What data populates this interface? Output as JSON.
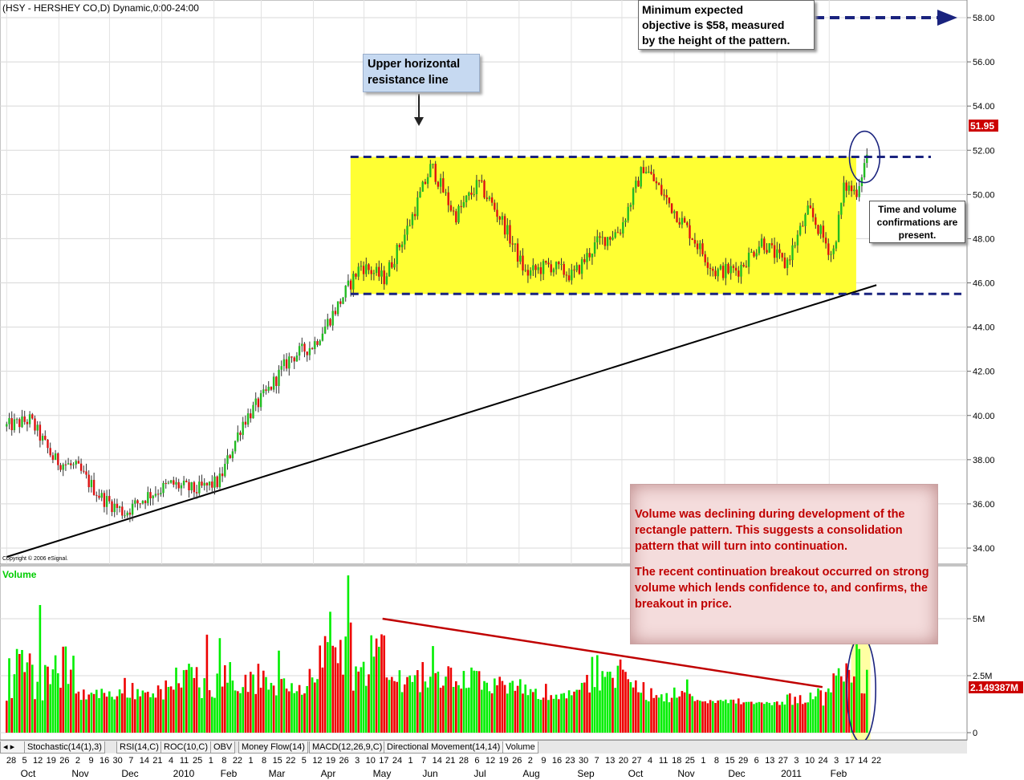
{
  "chart_data": {
    "type": "candlestick",
    "title": "(HSY - HERSHEY CO,D) Dynamic,0:00-24:00",
    "copyright": "Copyright © 2006 eSignal.",
    "price_axis": {
      "ticks": [
        "58.00",
        "56.00",
        "54.00",
        "52.00",
        "50.00",
        "48.00",
        "46.00",
        "44.00",
        "42.00",
        "40.00",
        "38.00",
        "36.00",
        "34.00"
      ],
      "last_price": "51.95"
    },
    "volume_axis": {
      "label": "Volume",
      "ticks": [
        "5M",
        "2.5M",
        "0"
      ],
      "last_volume": "2.149387M"
    },
    "price_series": [
      {
        "date": "2009-10-01",
        "close": 39.5
      },
      {
        "date": "2009-10-15",
        "close": 39.8
      },
      {
        "date": "2009-10-29",
        "close": 38.0
      },
      {
        "date": "2009-11-12",
        "close": 37.6
      },
      {
        "date": "2009-11-26",
        "close": 36.3
      },
      {
        "date": "2009-12-10",
        "close": 35.6
      },
      {
        "date": "2009-12-24",
        "close": 36.4
      },
      {
        "date": "2010-01-07",
        "close": 36.9
      },
      {
        "date": "2010-01-21",
        "close": 36.6
      },
      {
        "date": "2010-02-04",
        "close": 37.0
      },
      {
        "date": "2010-02-18",
        "close": 39.7
      },
      {
        "date": "2010-03-04",
        "close": 41.0
      },
      {
        "date": "2010-03-18",
        "close": 42.6
      },
      {
        "date": "2010-04-01",
        "close": 43.2
      },
      {
        "date": "2010-04-15",
        "close": 44.9
      },
      {
        "date": "2010-04-29",
        "close": 46.8
      },
      {
        "date": "2010-05-13",
        "close": 46.2
      },
      {
        "date": "2010-05-27",
        "close": 48.5
      },
      {
        "date": "2010-06-10",
        "close": 51.3
      },
      {
        "date": "2010-06-24",
        "close": 49.0
      },
      {
        "date": "2010-07-08",
        "close": 50.5
      },
      {
        "date": "2010-07-22",
        "close": 48.8
      },
      {
        "date": "2010-08-05",
        "close": 46.4
      },
      {
        "date": "2010-08-19",
        "close": 46.8
      },
      {
        "date": "2010-09-02",
        "close": 46.3
      },
      {
        "date": "2010-09-16",
        "close": 47.8
      },
      {
        "date": "2010-09-30",
        "close": 48.4
      },
      {
        "date": "2010-10-14",
        "close": 51.3
      },
      {
        "date": "2010-10-28",
        "close": 49.7
      },
      {
        "date": "2010-11-11",
        "close": 48.2
      },
      {
        "date": "2010-11-25",
        "close": 46.5
      },
      {
        "date": "2010-12-09",
        "close": 46.6
      },
      {
        "date": "2010-12-23",
        "close": 47.9
      },
      {
        "date": "2011-01-06",
        "close": 46.8
      },
      {
        "date": "2011-01-20",
        "close": 49.3
      },
      {
        "date": "2011-02-03",
        "close": 47.2
      },
      {
        "date": "2011-02-10",
        "close": 50.4
      },
      {
        "date": "2011-02-17",
        "close": 50.1
      },
      {
        "date": "2011-02-24",
        "close": 51.95
      }
    ],
    "volume_series": [
      {
        "date": "2009-10-01",
        "volume": 1.4
      },
      {
        "date": "2009-10-20",
        "volume": 5.6
      },
      {
        "date": "2009-11-12",
        "volume": 1.8
      },
      {
        "date": "2009-12-10",
        "volume": 2.4
      },
      {
        "date": "2010-01-07",
        "volume": 1.9
      },
      {
        "date": "2010-01-27",
        "volume": 4.3
      },
      {
        "date": "2010-02-18",
        "volume": 2.0
      },
      {
        "date": "2010-03-11",
        "volume": 3.6
      },
      {
        "date": "2010-04-01",
        "volume": 2.2
      },
      {
        "date": "2010-04-21",
        "volume": 6.9
      },
      {
        "date": "2010-05-13",
        "volume": 2.6
      },
      {
        "date": "2010-06-10",
        "volume": 3.8
      },
      {
        "date": "2010-07-08",
        "volume": 2.7
      },
      {
        "date": "2010-08-05",
        "volume": 2.3
      },
      {
        "date": "2010-09-02",
        "volume": 1.8
      },
      {
        "date": "2010-09-16",
        "volume": 3.4
      },
      {
        "date": "2010-10-14",
        "volume": 2.5
      },
      {
        "date": "2010-11-11",
        "volume": 1.6
      },
      {
        "date": "2010-12-09",
        "volume": 1.5
      },
      {
        "date": "2011-01-06",
        "volume": 1.3
      },
      {
        "date": "2011-02-03",
        "volume": 2.6
      },
      {
        "date": "2011-02-17",
        "volume": 3.9
      },
      {
        "date": "2011-02-24",
        "volume": 2.15
      }
    ],
    "rectangle": {
      "top": 51.7,
      "bottom": 45.5,
      "start": "2010-04-23",
      "end": "2011-02-17"
    },
    "support_trendline": {
      "from": {
        "date": "2009-10-01",
        "price": 33.6
      },
      "to": {
        "date": "2011-03-01",
        "price": 45.9
      }
    },
    "target_price": 58.0,
    "volume_trendline": {
      "from": {
        "date": "2010-05-12",
        "volume": 5.0
      },
      "to": {
        "date": "2011-01-28",
        "volume": 2.0
      }
    },
    "date_axis": {
      "day_labels": [
        "28",
        "5",
        "12",
        "19",
        "26",
        "2",
        "9",
        "16",
        "30",
        "7",
        "14",
        "21",
        "4",
        "11",
        "25",
        "1",
        "8",
        "22",
        "1",
        "8",
        "15",
        "22",
        "5",
        "12",
        "19",
        "26",
        "3",
        "10",
        "17",
        "24",
        "1",
        "7",
        "14",
        "21",
        "28",
        "6",
        "12",
        "19",
        "26",
        "2",
        "9",
        "16",
        "23",
        "30",
        "7",
        "13",
        "20",
        "27",
        "4",
        "11",
        "18",
        "25",
        "1",
        "8",
        "15",
        "29",
        "6",
        "13",
        "27",
        "3",
        "10",
        "24",
        "3",
        "17",
        "14",
        "22"
      ],
      "month_labels": [
        "Oct",
        "Nov",
        "Dec",
        "2010",
        "Feb",
        "Mar",
        "Apr",
        "May",
        "Jun",
        "Jul",
        "Aug",
        "Sep",
        "Oct",
        "Nov",
        "Dec",
        "2011",
        "Feb"
      ]
    }
  },
  "annotations": {
    "objective": [
      "Minimum expected",
      "objective  is $58, measured",
      "by the height of the pattern."
    ],
    "resistance": [
      "Upper horizontal",
      "resistance line"
    ],
    "confirm": [
      "Time and volume",
      "confirmations are",
      "present."
    ],
    "volume_note_1": "Volume was declining during development of the rectangle pattern. This suggests a consolidation pattern that will turn into continuation.",
    "volume_note_2": "The recent continuation breakout occurred on strong volume which lends confidence to, and confirms, the breakout in price."
  },
  "tabs": [
    "Stochastic(14(1),3)",
    "RSI(14,C)",
    "ROC(10,C)",
    "OBV",
    "Money Flow(14)",
    "MACD(12,26,9,C)",
    "Directional Movement(14,14)",
    "Volume"
  ],
  "colors": {
    "up": "#00ee00",
    "down": "#ee0000",
    "rect_fill": "#ffff33",
    "rect_line": "#1a237e",
    "arrow": "#1a237e",
    "trend": "#000000",
    "volume_trend": "#c00000",
    "price_badge": "#cc0000"
  }
}
